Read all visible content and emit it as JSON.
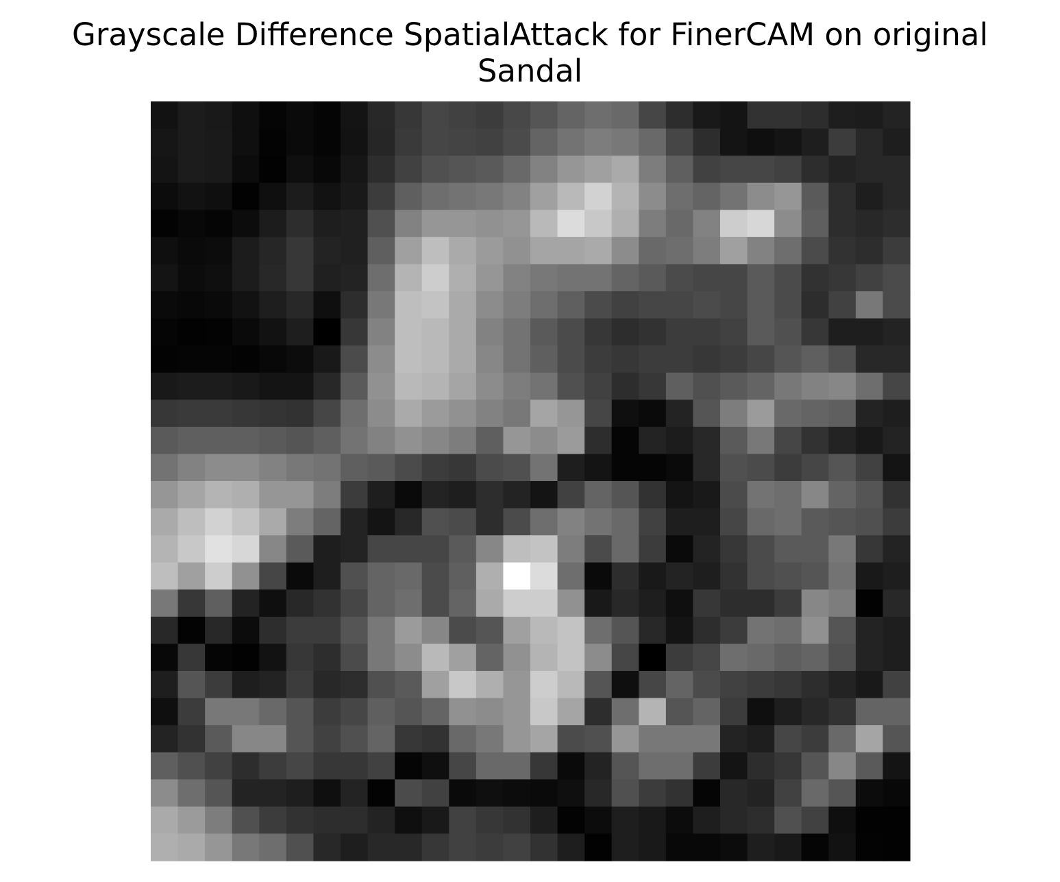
{
  "title": "Grayscale Difference SpatialAttack for FinerCAM on original\nSandal",
  "chart_data": {
    "type": "heatmap",
    "title": "Grayscale Difference SpatialAttack for FinerCAM on original\nSandal",
    "colormap": "gray",
    "axes_visible": false,
    "rows": 28,
    "cols": 28,
    "value_range": [
      0,
      255
    ],
    "values": [
      [
        18,
        28,
        25,
        15,
        5,
        10,
        5,
        20,
        40,
        55,
        70,
        65,
        60,
        72,
        85,
        100,
        110,
        105,
        70,
        45,
        25,
        20,
        50,
        50,
        45,
        30,
        28,
        35
      ],
      [
        22,
        28,
        26,
        15,
        3,
        10,
        5,
        18,
        38,
        58,
        70,
        68,
        65,
        75,
        100,
        115,
        125,
        120,
        105,
        70,
        45,
        20,
        15,
        20,
        30,
        60,
        40,
        30
      ],
      [
        20,
        28,
        26,
        12,
        2,
        15,
        8,
        22,
        45,
        65,
        80,
        85,
        90,
        105,
        130,
        150,
        160,
        170,
        125,
        95,
        65,
        70,
        70,
        65,
        45,
        35,
        40,
        40
      ],
      [
        12,
        18,
        15,
        2,
        15,
        28,
        18,
        25,
        60,
        95,
        110,
        115,
        120,
        130,
        160,
        185,
        210,
        180,
        140,
        110,
        100,
        115,
        140,
        150,
        90,
        45,
        30,
        40
      ],
      [
        3,
        8,
        5,
        12,
        28,
        45,
        30,
        32,
        80,
        130,
        150,
        150,
        145,
        150,
        185,
        220,
        200,
        175,
        125,
        105,
        130,
        205,
        215,
        140,
        95,
        45,
        40,
        45
      ],
      [
        15,
        10,
        12,
        28,
        38,
        55,
        35,
        32,
        95,
        160,
        190,
        170,
        155,
        145,
        165,
        165,
        170,
        140,
        105,
        110,
        125,
        160,
        130,
        110,
        75,
        50,
        45,
        60
      ],
      [
        20,
        12,
        15,
        28,
        40,
        55,
        32,
        35,
        110,
        180,
        205,
        175,
        150,
        130,
        120,
        115,
        115,
        100,
        90,
        75,
        70,
        70,
        90,
        75,
        50,
        55,
        65,
        75
      ],
      [
        10,
        8,
        10,
        18,
        30,
        40,
        15,
        45,
        120,
        190,
        195,
        170,
        140,
        125,
        110,
        95,
        75,
        65,
        70,
        70,
        75,
        70,
        90,
        75,
        45,
        65,
        120,
        75
      ],
      [
        5,
        2,
        3,
        10,
        18,
        30,
        0,
        55,
        130,
        190,
        185,
        170,
        130,
        115,
        90,
        75,
        55,
        45,
        50,
        60,
        60,
        65,
        90,
        80,
        55,
        30,
        30,
        35
      ],
      [
        3,
        5,
        5,
        3,
        8,
        12,
        25,
        75,
        140,
        190,
        185,
        170,
        135,
        115,
        95,
        75,
        60,
        55,
        60,
        60,
        55,
        60,
        70,
        85,
        95,
        80,
        40,
        40
      ],
      [
        25,
        28,
        28,
        25,
        20,
        20,
        40,
        90,
        145,
        185,
        180,
        165,
        140,
        125,
        115,
        80,
        65,
        45,
        55,
        95,
        80,
        90,
        100,
        120,
        130,
        135,
        110,
        70
      ],
      [
        55,
        58,
        58,
        55,
        52,
        50,
        70,
        110,
        140,
        170,
        155,
        145,
        130,
        120,
        165,
        150,
        70,
        15,
        10,
        35,
        85,
        125,
        155,
        105,
        100,
        95,
        35,
        30
      ],
      [
        90,
        95,
        95,
        95,
        90,
        85,
        95,
        115,
        130,
        145,
        135,
        125,
        95,
        150,
        140,
        155,
        45,
        5,
        35,
        28,
        40,
        90,
        120,
        70,
        50,
        35,
        25,
        35
      ],
      [
        115,
        130,
        140,
        140,
        130,
        120,
        115,
        95,
        90,
        75,
        60,
        55,
        75,
        80,
        115,
        30,
        20,
        5,
        5,
        10,
        40,
        80,
        75,
        60,
        70,
        85,
        65,
        20
      ],
      [
        150,
        165,
        180,
        175,
        150,
        150,
        125,
        60,
        30,
        10,
        35,
        30,
        45,
        35,
        20,
        65,
        100,
        85,
        50,
        20,
        25,
        75,
        115,
        110,
        135,
        100,
        85,
        50
      ],
      [
        170,
        190,
        210,
        195,
        170,
        125,
        100,
        35,
        20,
        40,
        80,
        75,
        45,
        75,
        110,
        130,
        115,
        105,
        65,
        30,
        30,
        70,
        105,
        110,
        90,
        85,
        80,
        60
      ],
      [
        180,
        200,
        225,
        215,
        135,
        90,
        30,
        35,
        70,
        70,
        70,
        90,
        135,
        190,
        195,
        125,
        75,
        105,
        60,
        10,
        35,
        55,
        75,
        90,
        90,
        120,
        55,
        35
      ],
      [
        190,
        160,
        205,
        145,
        70,
        10,
        30,
        80,
        100,
        105,
        75,
        95,
        175,
        255,
        220,
        110,
        10,
        45,
        25,
        35,
        30,
        50,
        75,
        80,
        85,
        115,
        25,
        30
      ],
      [
        120,
        55,
        95,
        35,
        15,
        40,
        50,
        70,
        100,
        110,
        75,
        100,
        170,
        205,
        205,
        145,
        25,
        40,
        30,
        15,
        55,
        45,
        45,
        60,
        135,
        125,
        2,
        40
      ],
      [
        40,
        3,
        40,
        12,
        45,
        60,
        60,
        85,
        120,
        155,
        135,
        75,
        85,
        160,
        185,
        195,
        110,
        85,
        40,
        20,
        45,
        60,
        115,
        110,
        145,
        85,
        35,
        30
      ],
      [
        8,
        55,
        5,
        2,
        18,
        55,
        45,
        75,
        120,
        140,
        185,
        160,
        100,
        145,
        180,
        195,
        140,
        70,
        0,
        60,
        70,
        110,
        105,
        95,
        100,
        80,
        35,
        30
      ],
      [
        30,
        85,
        60,
        30,
        35,
        60,
        40,
        45,
        80,
        90,
        160,
        200,
        175,
        150,
        205,
        185,
        85,
        15,
        70,
        100,
        75,
        65,
        60,
        55,
        45,
        35,
        25,
        65
      ],
      [
        15,
        60,
        120,
        120,
        105,
        85,
        60,
        70,
        95,
        85,
        100,
        145,
        140,
        150,
        200,
        165,
        45,
        110,
        180,
        85,
        100,
        60,
        15,
        30,
        40,
        50,
        100,
        100
      ],
      [
        35,
        50,
        90,
        135,
        135,
        85,
        65,
        80,
        100,
        55,
        50,
        105,
        120,
        150,
        165,
        75,
        80,
        150,
        120,
        120,
        120,
        35,
        30,
        70,
        60,
        105,
        165,
        85
      ],
      [
        95,
        80,
        65,
        45,
        60,
        70,
        55,
        55,
        65,
        5,
        15,
        70,
        105,
        105,
        55,
        10,
        35,
        85,
        110,
        110,
        60,
        20,
        45,
        55,
        85,
        135,
        90,
        20
      ],
      [
        140,
        110,
        85,
        35,
        35,
        30,
        15,
        35,
        3,
        75,
        65,
        10,
        15,
        12,
        10,
        15,
        40,
        80,
        60,
        50,
        5,
        40,
        35,
        65,
        105,
        85,
        12,
        8
      ],
      [
        170,
        155,
        125,
        80,
        60,
        50,
        45,
        45,
        35,
        15,
        25,
        65,
        55,
        50,
        30,
        3,
        12,
        30,
        25,
        12,
        30,
        40,
        45,
        80,
        65,
        15,
        2,
        2
      ],
      [
        175,
        170,
        150,
        120,
        110,
        80,
        40,
        30,
        40,
        40,
        55,
        65,
        60,
        65,
        50,
        30,
        2,
        30,
        25,
        8,
        8,
        12,
        30,
        25,
        5,
        18,
        3,
        2
      ]
    ]
  }
}
